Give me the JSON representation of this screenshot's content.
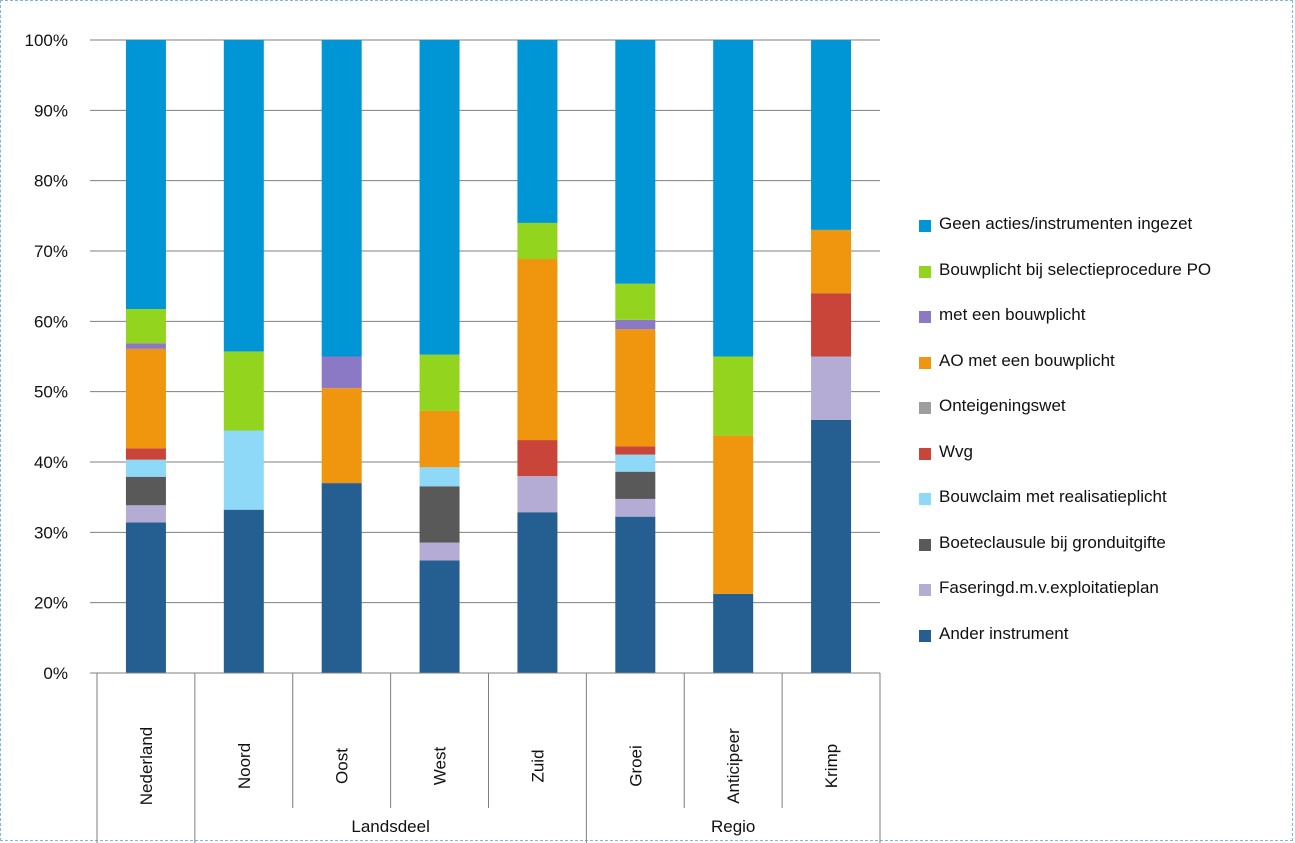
{
  "chart_data": {
    "type": "bar",
    "stacked": true,
    "y_tick_labels": [
      "0%",
      "20%",
      "30%",
      "40%",
      "50%",
      "60%",
      "70%",
      "80%",
      "90%",
      "100%"
    ],
    "categories": [
      "Nederland",
      "Noord",
      "Oost",
      "West",
      "Zuid",
      "Groei",
      "Anticipeer",
      "Krimp"
    ],
    "groups": [
      {
        "label": "",
        "categories": [
          "Nederland"
        ]
      },
      {
        "label": "Landsdeel",
        "categories": [
          "Noord",
          "Oost",
          "West",
          "Zuid"
        ]
      },
      {
        "label": "Regio",
        "categories": [
          "Groei",
          "Anticipeer",
          "Krimp"
        ]
      }
    ],
    "legend_position": "right",
    "grid": true,
    "series": [
      {
        "name": "Ander instrument",
        "color": "#255E91",
        "values": [
          23.8,
          25.8,
          30.0,
          17.8,
          25.4,
          24.7,
          12.5,
          40.0
        ]
      },
      {
        "name": "Faseringd.m.v.exploitatieplan",
        "color": "#B4ACD4",
        "values": [
          2.7,
          0,
          0,
          2.8,
          5.7,
          2.8,
          0,
          10.0
        ]
      },
      {
        "name": "Boeteclausule bij gronduitgifte",
        "color": "#595959",
        "values": [
          4.5,
          0,
          0,
          8.9,
          0,
          4.3,
          0,
          0
        ]
      },
      {
        "name": "Bouwclaim met realisatieplicht",
        "color": "#8ED8F8",
        "values": [
          2.7,
          12.5,
          0,
          3.0,
          0,
          2.7,
          0,
          0
        ]
      },
      {
        "name": "Wvg",
        "color": "#C9453A",
        "values": [
          1.8,
          0,
          0,
          0,
          5.7,
          1.3,
          0,
          10.0
        ]
      },
      {
        "name": "Onteigeningswet",
        "color": "#9E9E9E",
        "values": [
          0,
          0,
          0,
          0,
          0,
          0,
          0,
          0
        ]
      },
      {
        "name": "AO met een bouwplicht",
        "color": "#F0950E",
        "values": [
          15.7,
          0,
          15.0,
          8.9,
          28.6,
          18.5,
          25.0,
          10.0
        ]
      },
      {
        "name": "met een bouwplicht",
        "color": "#8B79C6",
        "values": [
          0.9,
          0,
          5.0,
          0,
          0,
          1.5,
          0,
          0
        ]
      },
      {
        "name": "Bouwplicht bij selectieprocedure PO",
        "color": "#93D41F",
        "values": [
          5.4,
          12.5,
          0,
          8.9,
          5.7,
          5.7,
          12.5,
          0
        ]
      },
      {
        "name": "Geen acties/instrumenten ingezet",
        "color": "#0096D6",
        "values": [
          42.5,
          49.2,
          50.0,
          49.7,
          28.9,
          38.5,
          50.0,
          30.0
        ]
      }
    ]
  },
  "legend_items": [
    {
      "label": "Geen acties/instrumenten ingezet",
      "color": "#0096D6"
    },
    {
      "label": "Bouwplicht bij selectieprocedure PO",
      "color": "#93D41F"
    },
    {
      "label": "met een bouwplicht",
      "color": "#8B79C6"
    },
    {
      "label": "AO met een bouwplicht",
      "color": "#F0950E"
    },
    {
      "label": "Onteigeningswet",
      "color": "#9E9E9E"
    },
    {
      "label": "Wvg",
      "color": "#C9453A"
    },
    {
      "label": "Bouwclaim met realisatieplicht",
      "color": "#8ED8F8"
    },
    {
      "label": "Boeteclausule bij gronduitgifte",
      "color": "#595959"
    },
    {
      "label": "Faseringd.m.v.exploitatieplan",
      "color": "#B4ACD4"
    },
    {
      "label": "Ander instrument",
      "color": "#255E91"
    }
  ]
}
